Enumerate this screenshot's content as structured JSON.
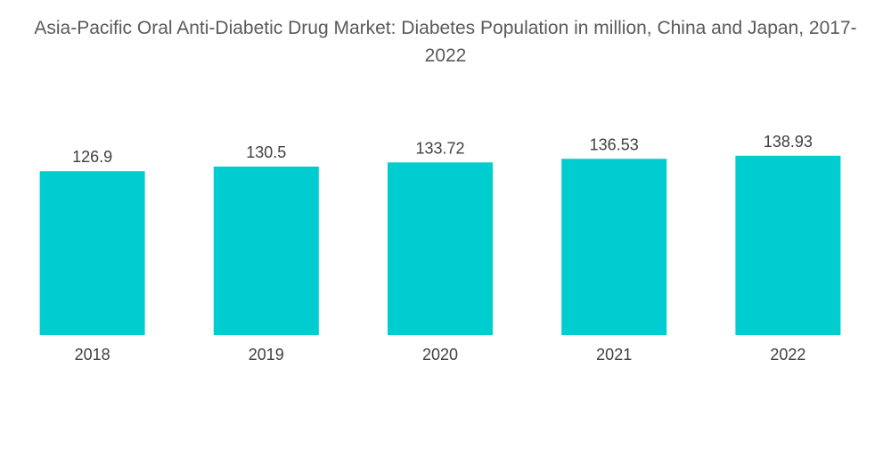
{
  "chart_data": {
    "type": "bar",
    "title": "Asia-Pacific Oral Anti-Diabetic Drug Market: Diabetes Population in million, China and Japan, 2017-2022",
    "categories": [
      "2018",
      "2019",
      "2020",
      "2021",
      "2022"
    ],
    "values": [
      126.9,
      130.5,
      133.72,
      136.53,
      138.93
    ],
    "value_labels": [
      "126.9",
      "130.5",
      "133.72",
      "136.53",
      "138.93"
    ],
    "xlabel": "",
    "ylabel": "",
    "ylim": [
      0,
      145
    ],
    "grid": false,
    "legend": "none",
    "colors": {
      "bar": "#00cdd0",
      "text": "#404040",
      "title": "#5a5a5a"
    }
  }
}
